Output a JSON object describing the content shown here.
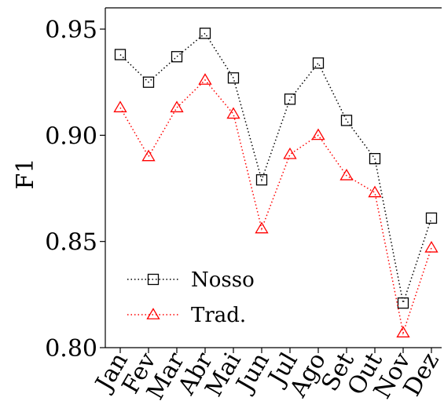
{
  "chart_data": {
    "type": "line",
    "title": "",
    "xlabel": "",
    "ylabel": "F1",
    "ylim": [
      0.8,
      0.96
    ],
    "yticks": [
      0.8,
      0.85,
      0.9,
      0.95
    ],
    "ytick_labels": [
      "0.80",
      "0.85",
      "0.90",
      "0.95"
    ],
    "categories": [
      "Jan",
      "Fev",
      "Mar",
      "Abr",
      "Mai",
      "Jun",
      "Jul",
      "Ago",
      "Set",
      "Out",
      "Nov",
      "Dez"
    ],
    "grid": false,
    "legend_position": "lower-left",
    "series": [
      {
        "name": "Nosso",
        "color": "#000000",
        "marker": "square",
        "line_style": "dotted",
        "values": [
          0.938,
          0.925,
          0.937,
          0.948,
          0.927,
          0.879,
          0.917,
          0.934,
          0.907,
          0.889,
          0.821,
          0.861
        ]
      },
      {
        "name": "Trad.",
        "color": "#ff0000",
        "marker": "triangle",
        "line_style": "dotted",
        "values": [
          0.913,
          0.89,
          0.913,
          0.926,
          0.91,
          0.856,
          0.891,
          0.9,
          0.881,
          0.873,
          0.807,
          0.847
        ]
      }
    ]
  }
}
